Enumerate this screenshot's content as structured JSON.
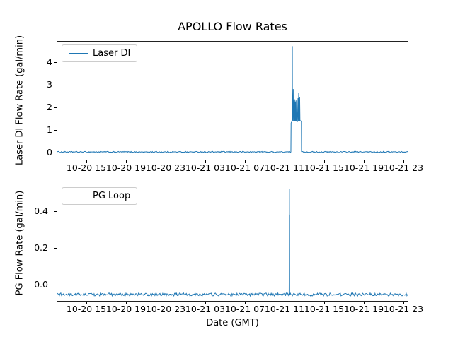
{
  "figure": {
    "title": "APOLLO Flow Rates",
    "xlabel": "Date (GMT)",
    "background_color": "#ffffff",
    "line_color": "#1f77b4"
  },
  "chart_data": [
    {
      "type": "line",
      "series_name": "Laser DI",
      "legend": {
        "label": "Laser DI",
        "position": "upper left"
      },
      "ylabel": "Laser DI Flow Rate (gal/min)",
      "color": "#1f77b4",
      "grid": false,
      "xlim_hours": [
        0,
        35.5
      ],
      "ylim": [
        -0.35,
        4.93
      ],
      "x_tick_hours": [
        3,
        7,
        11,
        15,
        19,
        23,
        27,
        31,
        35
      ],
      "x_tick_labels": [
        "10-20 15",
        "10-20 19",
        "10-20 23",
        "10-21 03",
        "10-21 07",
        "10-21 11",
        "10-21 15",
        "10-21 19",
        "10-21 23"
      ],
      "y_ticks": [
        0,
        1,
        2,
        3,
        4
      ],
      "y_tick_labels": [
        "0",
        "1",
        "2",
        "3",
        "4"
      ],
      "baseline": {
        "value": 0.02,
        "noise": 0.025
      },
      "event_points": [
        [
          23.64,
          0.02
        ],
        [
          23.66,
          1.3
        ],
        [
          23.72,
          1.35
        ],
        [
          23.76,
          1.38
        ],
        [
          23.78,
          1.4
        ],
        [
          23.79,
          4.7
        ],
        [
          23.8,
          1.4
        ],
        [
          23.82,
          1.42
        ],
        [
          23.88,
          2.8
        ],
        [
          23.9,
          1.4
        ],
        [
          23.95,
          2.3
        ],
        [
          23.98,
          1.38
        ],
        [
          24.02,
          2.35
        ],
        [
          24.05,
          1.4
        ],
        [
          24.09,
          2.25
        ],
        [
          24.12,
          1.38
        ],
        [
          24.16,
          2.3
        ],
        [
          24.19,
          1.4
        ],
        [
          24.25,
          1.36
        ],
        [
          24.3,
          1.36
        ],
        [
          24.36,
          2.4
        ],
        [
          24.39,
          1.4
        ],
        [
          24.43,
          2.65
        ],
        [
          24.46,
          2.4
        ],
        [
          24.49,
          1.4
        ],
        [
          24.53,
          2.45
        ],
        [
          24.56,
          1.4
        ],
        [
          24.62,
          1.4
        ],
        [
          24.68,
          1.38
        ],
        [
          24.7,
          1.35
        ],
        [
          24.71,
          0.02
        ]
      ]
    },
    {
      "type": "line",
      "series_name": "PG Loop",
      "legend": {
        "label": "PG Loop",
        "position": "upper left"
      },
      "ylabel": "PG Flow Rate (gal/min)",
      "xlabel": "Date (GMT)",
      "color": "#1f77b4",
      "grid": false,
      "xlim_hours": [
        0,
        35.5
      ],
      "ylim": [
        -0.094,
        0.549
      ],
      "x_tick_hours": [
        3,
        7,
        11,
        15,
        19,
        23,
        27,
        31,
        35
      ],
      "x_tick_labels": [
        "10-20 15",
        "10-20 19",
        "10-20 23",
        "10-21 03",
        "10-21 07",
        "10-21 11",
        "10-21 15",
        "10-21 19",
        "10-21 23"
      ],
      "y_ticks": [
        0.0,
        0.2,
        0.4
      ],
      "y_tick_labels": [
        "0.0",
        "0.2",
        "0.4"
      ],
      "baseline": {
        "value": -0.055,
        "noise": 0.008
      },
      "event_points": [
        [
          23.46,
          -0.055
        ],
        [
          23.47,
          0.1
        ],
        [
          23.48,
          0.3
        ],
        [
          23.49,
          0.52
        ],
        [
          23.5,
          0.1
        ],
        [
          23.51,
          0.38
        ],
        [
          23.52,
          -0.05
        ],
        [
          23.53,
          -0.055
        ]
      ]
    }
  ]
}
